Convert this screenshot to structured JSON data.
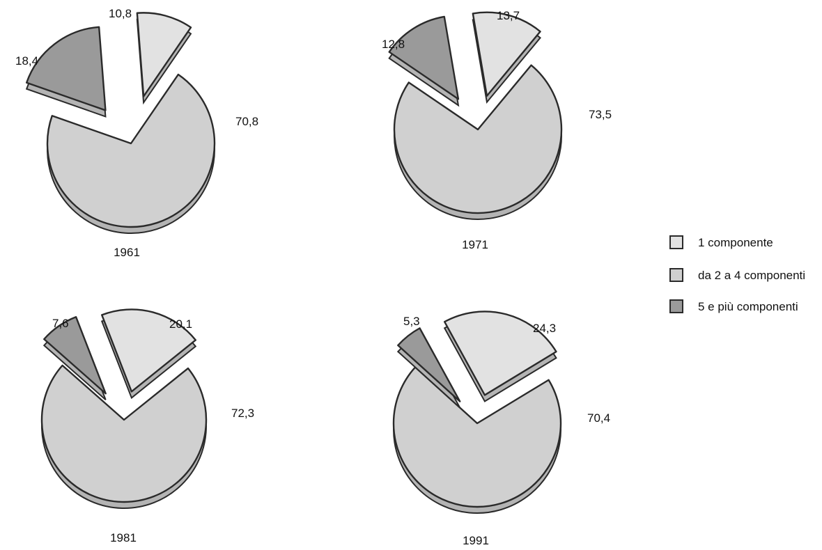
{
  "legend": {
    "position": "right",
    "items": [
      {
        "label": "1 componente",
        "color": "#e2e2e2"
      },
      {
        "label": "da 2 a 4 componenti",
        "color": "#d0d0d0"
      },
      {
        "label": "5 e più componenti",
        "color": "#9a9a9a"
      }
    ]
  },
  "chart_data": [
    {
      "type": "pie",
      "label": "1961",
      "slices": [
        {
          "name": "1 componente",
          "value": 10.8,
          "text": "10,8"
        },
        {
          "name": "da 2 a 4 componenti",
          "value": 70.8,
          "text": "70,8"
        },
        {
          "name": "5 e più componenti",
          "value": 18.4,
          "text": "18,4"
        }
      ]
    },
    {
      "type": "pie",
      "label": "1971",
      "slices": [
        {
          "name": "1 componente",
          "value": 13.7,
          "text": "13,7"
        },
        {
          "name": "da 2 a 4 componenti",
          "value": 73.5,
          "text": "73,5"
        },
        {
          "name": "5 e più componenti",
          "value": 12.8,
          "text": "12,8"
        }
      ]
    },
    {
      "type": "pie",
      "label": "1981",
      "slices": [
        {
          "name": "1 componente",
          "value": 20.1,
          "text": "20,1"
        },
        {
          "name": "da 2 a 4 componenti",
          "value": 72.3,
          "text": "72,3"
        },
        {
          "name": "5 e più componenti",
          "value": 7.6,
          "text": "7,6"
        }
      ]
    },
    {
      "type": "pie",
      "label": "1991",
      "slices": [
        {
          "name": "1 componente",
          "value": 24.3,
          "text": "24,3"
        },
        {
          "name": "da 2 a 4 componenti",
          "value": 70.4,
          "text": "70,4"
        },
        {
          "name": "5 e più componenti",
          "value": 5.3,
          "text": "5,3"
        }
      ]
    }
  ]
}
